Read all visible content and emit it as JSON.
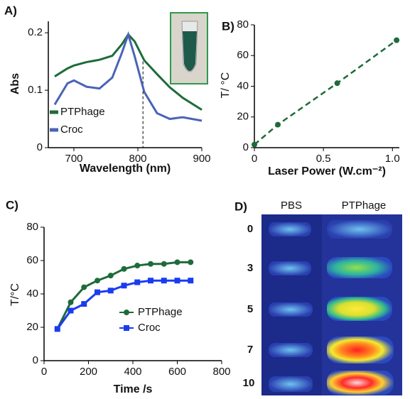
{
  "chart_data": [
    {
      "type": "line",
      "panel_label": "A)",
      "xlabel": "Wavelength (nm)",
      "ylabel": "Abs",
      "x": [
        670,
        690,
        700,
        720,
        740,
        760,
        775,
        785,
        795,
        810,
        830,
        850,
        870,
        900
      ],
      "series": [
        {
          "name": "PTPhage",
          "color": "#1e6b3a",
          "values": [
            0.124,
            0.138,
            0.143,
            0.149,
            0.153,
            0.16,
            0.18,
            0.197,
            0.185,
            0.152,
            0.128,
            0.105,
            0.087,
            0.066
          ]
        },
        {
          "name": "Croc",
          "color": "#4a63b8",
          "values": [
            0.075,
            0.112,
            0.117,
            0.106,
            0.103,
            0.122,
            0.165,
            0.197,
            0.159,
            0.097,
            0.06,
            0.05,
            0.053,
            0.047
          ]
        }
      ],
      "xlim": [
        660,
        900
      ],
      "xticks": [
        700,
        800,
        900
      ],
      "ylim": [
        0,
        0.22
      ],
      "yticks": [
        0,
        0.1,
        0.2
      ],
      "vline": 808,
      "legend": "lower left"
    },
    {
      "type": "line",
      "panel_label": "B)",
      "xlabel": "Laser Power (W.cm⁻²)",
      "ylabel": "T/ °C",
      "x": [
        0,
        0.17,
        0.6,
        1.03
      ],
      "series": [
        {
          "name": null,
          "color": "#1e6b3a",
          "values": [
            2,
            15,
            42,
            70
          ],
          "marker": "circle",
          "dashed": true
        }
      ],
      "xlim": [
        0,
        1.05
      ],
      "xticks": [
        0,
        0.5,
        {
          "value": 1,
          "label": "1.0"
        }
      ],
      "ylim": [
        0,
        80
      ],
      "yticks": [
        0,
        20,
        40,
        60,
        80
      ]
    },
    {
      "type": "line",
      "panel_label": "C)",
      "xlabel": "Time /s",
      "ylabel": "T/°C",
      "x": [
        60,
        120,
        180,
        240,
        300,
        360,
        420,
        480,
        540,
        600,
        660
      ],
      "series": [
        {
          "name": "PTPhage",
          "color": "#1e6b3a",
          "values": [
            19,
            35,
            44,
            48,
            51,
            55,
            57,
            58,
            58,
            59,
            59
          ],
          "marker": "circle"
        },
        {
          "name": "Croc",
          "color": "#1a3cf0",
          "values": [
            19,
            30,
            34,
            41,
            42,
            45,
            47,
            48,
            48,
            48,
            48
          ],
          "marker": "square"
        }
      ],
      "xlim": [
        0,
        800
      ],
      "xticks": [
        0,
        200,
        400,
        600,
        800
      ],
      "ylim": [
        0,
        80
      ],
      "yticks": [
        0,
        20,
        40,
        60,
        80
      ],
      "legend": "center right"
    }
  ],
  "thermal_image": {
    "panel_label": "D)",
    "columns": [
      "PBS",
      "PTPhage"
    ],
    "rows": [
      "0",
      "3",
      "5",
      "7",
      "10"
    ]
  }
}
